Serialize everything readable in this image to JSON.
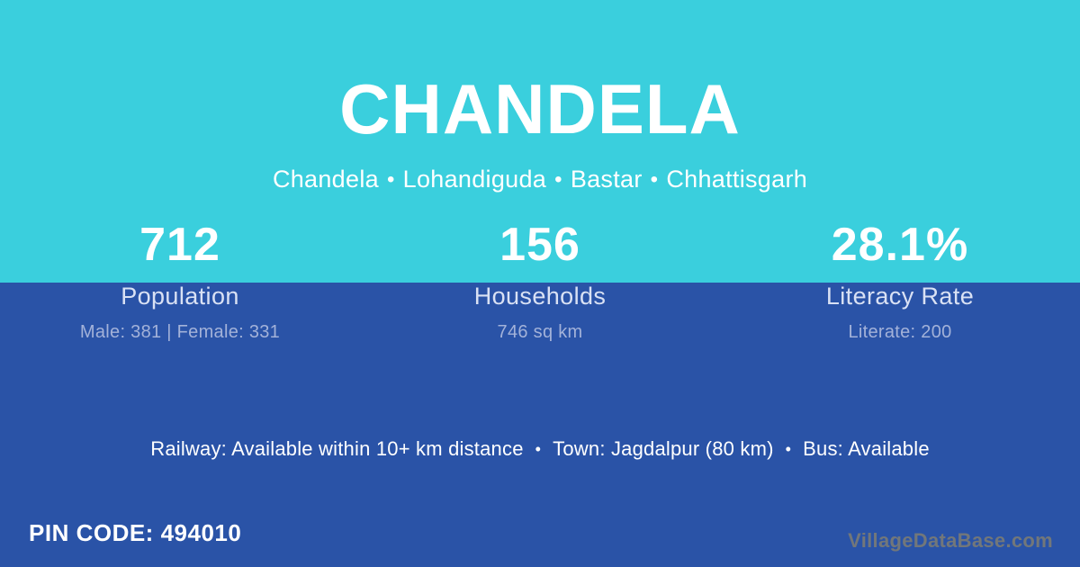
{
  "header": {
    "title": "CHANDELA",
    "breadcrumb": {
      "separator": "•",
      "items": [
        "Chandela",
        "Lohandiguda",
        "Bastar",
        "Chhattisgarh"
      ]
    }
  },
  "stats": [
    {
      "value": "712",
      "label": "Population",
      "detail": "Male: 381 | Female: 331"
    },
    {
      "value": "156",
      "label": "Households",
      "detail": "746 sq km"
    },
    {
      "value": "28.1%",
      "label": "Literacy Rate",
      "detail": "Literate: 200"
    }
  ],
  "facilities": {
    "separator": "•",
    "items": [
      "Railway: Available within 10+ km distance",
      "Town: Jagdalpur (80 km)",
      "Bus: Available"
    ]
  },
  "footer": {
    "pin_code": "PIN CODE: 494010",
    "watermark": "VillageDataBase.com"
  },
  "colors": {
    "top_background": "#3acfdd",
    "bottom_background": "#2a53a7",
    "primary_text": "#ffffff",
    "stat_label_text": "#d9e1f4",
    "stat_detail_text": "#a3b2d9",
    "watermark_text": "#72777a"
  }
}
